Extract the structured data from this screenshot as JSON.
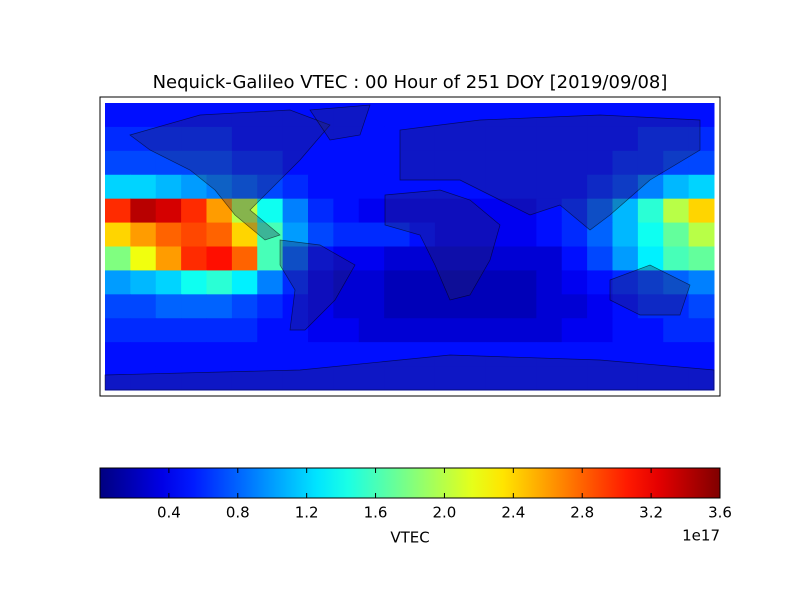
{
  "chart_data": {
    "type": "heatmap",
    "title": "Nequick-Galileo VTEC : 00 Hour of 251 DOY [2019/09/08]",
    "colormap": "jet",
    "z": [
      [
        0.5,
        0.5,
        0.5,
        0.5,
        0.5,
        0.5,
        0.5,
        0.5,
        0.5,
        0.5,
        0.5,
        0.5,
        0.5,
        0.5,
        0.5,
        0.5,
        0.5,
        0.5,
        0.5,
        0.5,
        0.5,
        0.5,
        0.5,
        0.5
      ],
      [
        0.6,
        0.6,
        0.6,
        0.6,
        0.6,
        0.5,
        0.5,
        0.5,
        0.5,
        0.5,
        0.5,
        0.5,
        0.5,
        0.5,
        0.5,
        0.5,
        0.5,
        0.5,
        0.5,
        0.5,
        0.5,
        0.6,
        0.6,
        0.6
      ],
      [
        0.7,
        0.7,
        0.7,
        0.7,
        0.7,
        0.6,
        0.6,
        0.5,
        0.5,
        0.5,
        0.5,
        0.5,
        0.5,
        0.5,
        0.5,
        0.5,
        0.5,
        0.5,
        0.5,
        0.5,
        0.6,
        0.6,
        0.7,
        0.7
      ],
      [
        1.2,
        1.2,
        1.1,
        1.0,
        0.9,
        0.8,
        0.7,
        0.6,
        0.5,
        0.5,
        0.5,
        0.5,
        0.5,
        0.5,
        0.5,
        0.5,
        0.5,
        0.5,
        0.5,
        0.6,
        0.7,
        0.9,
        1.1,
        1.2
      ],
      [
        3.0,
        3.4,
        3.3,
        3.0,
        2.6,
        2.0,
        1.4,
        0.9,
        0.6,
        0.5,
        0.4,
        0.4,
        0.4,
        0.4,
        0.4,
        0.4,
        0.4,
        0.5,
        0.6,
        0.8,
        1.1,
        1.5,
        2.0,
        2.4
      ],
      [
        2.4,
        2.6,
        2.8,
        2.9,
        2.8,
        2.4,
        1.6,
        1.0,
        0.7,
        0.6,
        0.6,
        0.6,
        0.5,
        0.4,
        0.4,
        0.4,
        0.4,
        0.5,
        0.6,
        0.8,
        1.1,
        1.4,
        1.7,
        2.0
      ],
      [
        1.8,
        2.2,
        2.6,
        3.0,
        3.1,
        2.8,
        1.6,
        0.8,
        0.5,
        0.4,
        0.4,
        0.3,
        0.3,
        0.3,
        0.3,
        0.3,
        0.3,
        0.3,
        0.5,
        0.7,
        1.0,
        1.3,
        1.6,
        1.7
      ],
      [
        1.0,
        1.1,
        1.2,
        1.4,
        1.5,
        1.3,
        0.9,
        0.6,
        0.4,
        0.3,
        0.3,
        0.2,
        0.2,
        0.2,
        0.2,
        0.2,
        0.2,
        0.3,
        0.4,
        0.5,
        0.6,
        0.7,
        0.8,
        0.9
      ],
      [
        0.7,
        0.7,
        0.8,
        0.8,
        0.8,
        0.7,
        0.6,
        0.5,
        0.4,
        0.3,
        0.3,
        0.2,
        0.2,
        0.2,
        0.2,
        0.2,
        0.2,
        0.3,
        0.3,
        0.4,
        0.5,
        0.6,
        0.6,
        0.7
      ],
      [
        0.6,
        0.6,
        0.6,
        0.6,
        0.6,
        0.6,
        0.5,
        0.5,
        0.4,
        0.4,
        0.3,
        0.3,
        0.3,
        0.3,
        0.3,
        0.3,
        0.3,
        0.3,
        0.4,
        0.4,
        0.5,
        0.5,
        0.6,
        0.6
      ],
      [
        0.5,
        0.5,
        0.5,
        0.5,
        0.5,
        0.5,
        0.5,
        0.5,
        0.5,
        0.5,
        0.5,
        0.5,
        0.5,
        0.5,
        0.5,
        0.5,
        0.5,
        0.5,
        0.5,
        0.5,
        0.5,
        0.5,
        0.5,
        0.5
      ],
      [
        0.5,
        0.5,
        0.5,
        0.5,
        0.5,
        0.5,
        0.5,
        0.5,
        0.5,
        0.5,
        0.5,
        0.5,
        0.5,
        0.5,
        0.5,
        0.5,
        0.5,
        0.5,
        0.5,
        0.5,
        0.5,
        0.5,
        0.5,
        0.5
      ]
    ],
    "clim": [
      0,
      3.6
    ],
    "cticks": [
      0.4,
      0.8,
      1.2,
      1.6,
      2.0,
      2.4,
      2.8,
      3.2,
      3.6
    ],
    "colorbar_label": "VTEC",
    "colorbar_offset": "1e17"
  }
}
